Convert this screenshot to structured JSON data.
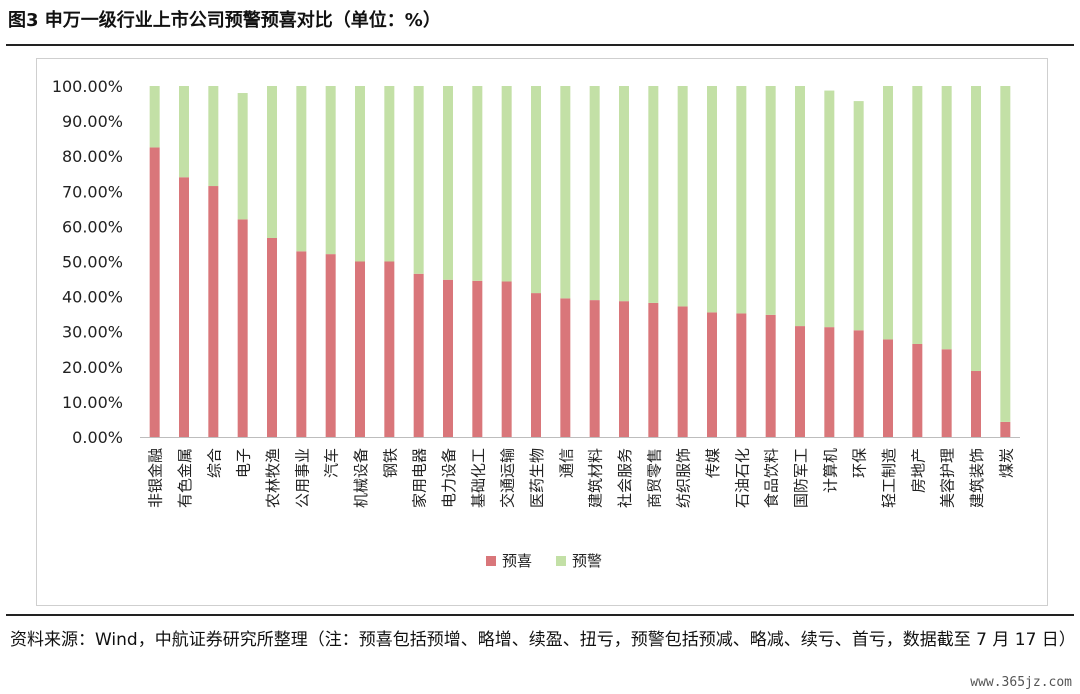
{
  "header": {
    "title": "图3 申万一级行业上市公司预警预喜对比（单位：%）"
  },
  "footer": {
    "source": "资料来源：Wind，中航证券研究所整理（注：预喜包括预增、略增、续盈、扭亏，预警包括预减、略减、续亏、首亏，数据截至 7 月 17 日）",
    "watermark": "www.365jz.com"
  },
  "colors": {
    "yuxi": "#d9767a",
    "yujing": "#c3e0a6"
  },
  "chart_data": {
    "type": "bar",
    "stacked": true,
    "title": "",
    "xlabel": "",
    "ylabel": "",
    "ylim": [
      0,
      100
    ],
    "yticks": [
      "0.00%",
      "10.00%",
      "20.00%",
      "30.00%",
      "40.00%",
      "50.00%",
      "60.00%",
      "70.00%",
      "80.00%",
      "90.00%",
      "100.00%"
    ],
    "categories": [
      "非银金融",
      "有色金属",
      "综合",
      "电子",
      "农林牧渔",
      "公用事业",
      "汽车",
      "机械设备",
      "钢铁",
      "家用电器",
      "电力设备",
      "基础化工",
      "交通运输",
      "医药生物",
      "通信",
      "建筑材料",
      "社会服务",
      "商贸零售",
      "纺织服饰",
      "传媒",
      "石油石化",
      "食品饮料",
      "国防军工",
      "计算机",
      "环保",
      "轻工制造",
      "房地产",
      "美容护理",
      "建筑装饰",
      "煤炭"
    ],
    "series": [
      {
        "name": "预喜",
        "values": [
          82.5,
          74.0,
          71.5,
          62.0,
          56.7,
          52.9,
          52.1,
          50.0,
          50.0,
          46.5,
          44.8,
          44.5,
          44.3,
          41.0,
          39.5,
          39.0,
          38.7,
          38.2,
          37.2,
          35.5,
          35.2,
          34.8,
          31.6,
          31.3,
          30.4,
          27.8,
          26.5,
          25.0,
          18.8,
          4.3
        ]
      },
      {
        "name": "预警",
        "values": [
          17.5,
          26.0,
          28.5,
          36.0,
          43.3,
          47.1,
          47.9,
          50.0,
          50.0,
          53.5,
          55.2,
          55.5,
          55.7,
          59.0,
          60.5,
          61.0,
          61.3,
          61.8,
          62.8,
          64.5,
          64.8,
          65.2,
          68.4,
          67.4,
          65.3,
          72.2,
          73.5,
          75.0,
          81.2,
          95.7
        ]
      }
    ],
    "legend": "bottom"
  }
}
